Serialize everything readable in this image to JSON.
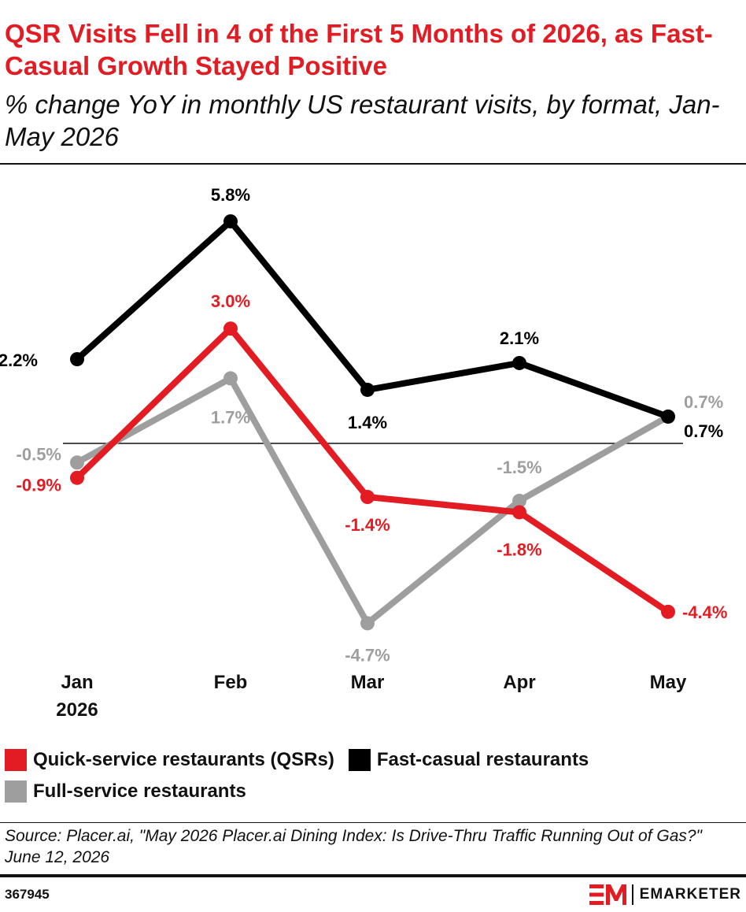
{
  "header": {
    "title": "QSR Visits Fell in 4 of the First 5 Months of 2026, as Fast-Casual Growth Stayed Positive",
    "subtitle": "% change YoY in monthly US restaurant visits, by format, Jan-May 2026"
  },
  "chart_data": {
    "type": "line",
    "title": "QSR Visits Fell in 4 of the First 5 Months of 2026, as Fast-Casual Growth Stayed Positive",
    "subtitle": "% change YoY in monthly US restaurant visits, by format, Jan-May 2026",
    "categories": [
      [
        "Jan",
        "2026"
      ],
      [
        "Feb"
      ],
      [
        "Mar"
      ],
      [
        "Apr"
      ],
      [
        "May"
      ]
    ],
    "ylim": [
      -5.5,
      6.5
    ],
    "grid": false,
    "zero_line": true,
    "legend_position": "bottom",
    "series": [
      {
        "name": "Fast-casual restaurants",
        "color": "#000000",
        "values": [
          2.2,
          5.8,
          1.4,
          2.1,
          0.7
        ],
        "labels": [
          "2.2%",
          "5.8%",
          "1.4%",
          "2.1%",
          "0.7%"
        ]
      },
      {
        "name": "Quick-service restaurants (QSRs)",
        "color": "#e31b23",
        "values": [
          -0.9,
          3.0,
          -1.4,
          -1.8,
          -4.4
        ],
        "labels": [
          "-0.9%",
          "3.0%",
          "-1.4%",
          "-1.8%",
          "-4.4%"
        ]
      },
      {
        "name": "Full-service restaurants",
        "color": "#9e9e9e",
        "values": [
          -0.5,
          1.7,
          -4.7,
          -1.5,
          0.7
        ],
        "labels": [
          "-0.5%",
          "1.7%",
          "-4.7%",
          "-1.5%",
          "0.7%"
        ]
      }
    ]
  },
  "legend": [
    {
      "label": "Quick-service restaurants (QSRs)",
      "color": "#e31b23"
    },
    {
      "label": "Fast-casual restaurants",
      "color": "#000000"
    },
    {
      "label": "Full-service restaurants",
      "color": "#9e9e9e"
    }
  ],
  "footer": {
    "source": "Source: Placer.ai, \"May 2026 Placer.ai Dining Index: Is Drive-Thru Traffic Running Out of Gas?\" June 12, 2026",
    "chart_id": "367945",
    "brand": "EMARKETER"
  }
}
